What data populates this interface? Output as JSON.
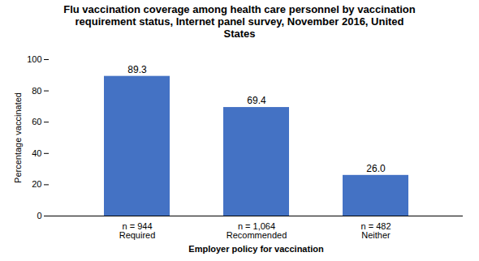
{
  "chart_data": {
    "type": "bar",
    "title": "Flu vaccination coverage among health care personnel by vaccination\nrequirement status, Internet panel survey, November 2016, United\nStates",
    "categories": [
      "n = 944\nRequired",
      "n = 1,064\nRecommended",
      "n = 482\nNeither"
    ],
    "values": [
      89.3,
      69.4,
      26.0
    ],
    "value_labels": [
      "89.3",
      "69.4",
      "26.0"
    ],
    "color": "#4472C4",
    "xlabel": "Employer policy for vaccination",
    "ylabel": "Percentage vaccinated",
    "ylim": [
      0,
      100
    ],
    "yticks": [
      0,
      20,
      40,
      60,
      80,
      100
    ],
    "data_labels": true,
    "grid": false
  }
}
